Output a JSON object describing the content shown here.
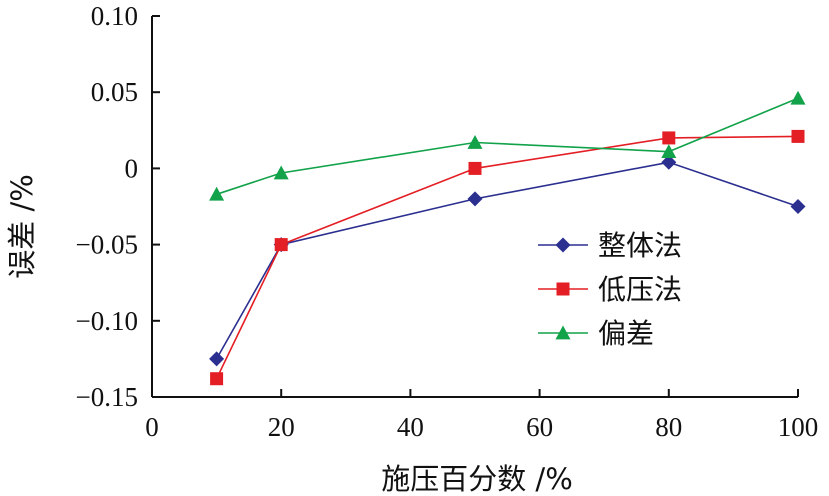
{
  "chart_data": {
    "type": "line",
    "xlabel": "施压百分数 /%",
    "ylabel": "误差 /%",
    "xlim": [
      0,
      100
    ],
    "ylim": [
      -0.15,
      0.1
    ],
    "x_ticks": [
      0,
      20,
      40,
      60,
      80,
      100
    ],
    "x_tick_labels": [
      "0",
      "20",
      "40",
      "60",
      "80",
      "100"
    ],
    "y_ticks": [
      0.1,
      0.05,
      0,
      -0.05,
      -0.1,
      -0.15
    ],
    "y_tick_labels": [
      "0.10",
      "0.05",
      "0",
      "−0.05",
      "−0.10",
      "−0.15"
    ],
    "grid": false,
    "legend_position": "right-middle",
    "series": [
      {
        "name": "整体法",
        "color": "#2b2f8f",
        "marker": "diamond",
        "x": [
          10,
          20,
          50,
          80,
          100
        ],
        "y": [
          -0.125,
          -0.05,
          -0.02,
          0.004,
          -0.025
        ]
      },
      {
        "name": "低压法",
        "color": "#e31e24",
        "marker": "square",
        "x": [
          10,
          20,
          50,
          80,
          100
        ],
        "y": [
          -0.138,
          -0.05,
          0.0,
          0.02,
          0.021
        ]
      },
      {
        "name": "偏差",
        "color": "#11a24a",
        "marker": "triangle",
        "x": [
          10,
          20,
          50,
          80,
          100
        ],
        "y": [
          -0.017,
          -0.003,
          0.017,
          0.011,
          0.046
        ]
      }
    ]
  }
}
